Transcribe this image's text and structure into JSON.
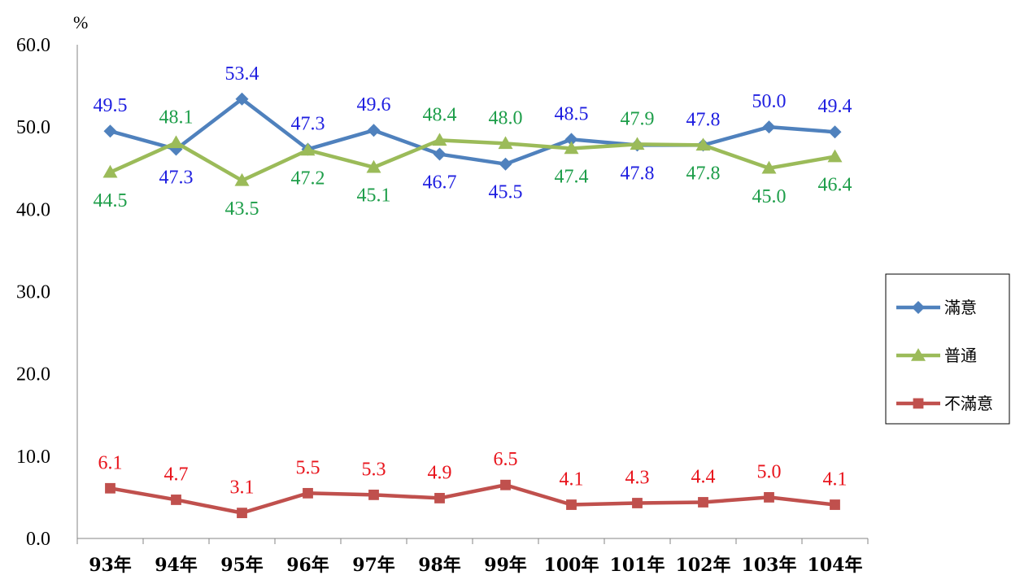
{
  "chart_data": {
    "type": "line",
    "unit_label": "%",
    "categories": [
      "93年",
      "94年",
      "95年",
      "96年",
      "97年",
      "98年",
      "99年",
      "100年",
      "101年",
      "102年",
      "103年",
      "104年"
    ],
    "ylim": [
      0,
      60
    ],
    "yticks": [
      "0.0",
      "10.0",
      "20.0",
      "30.0",
      "40.0",
      "50.0",
      "60.0"
    ],
    "grid": false,
    "legend_position": "right",
    "series": [
      {
        "name": "滿意",
        "color": "#4F81BD",
        "label_color": "#1F1FE0",
        "marker": "diamond",
        "values": [
          49.5,
          47.3,
          53.4,
          47.3,
          49.6,
          46.7,
          45.5,
          48.5,
          47.8,
          47.8,
          50.0,
          49.4
        ],
        "labels": [
          "49.5",
          "47.3",
          "53.4",
          "47.3",
          "49.6",
          "46.7",
          "45.5",
          "48.5",
          "47.8",
          "47.8",
          "50.0",
          "49.4"
        ]
      },
      {
        "name": "普通",
        "color": "#9BBB59",
        "label_color": "#1E9E4A",
        "marker": "triangle",
        "values": [
          44.5,
          48.1,
          43.5,
          47.2,
          45.1,
          48.4,
          48.0,
          47.4,
          47.9,
          47.8,
          45.0,
          46.4
        ],
        "labels": [
          "44.5",
          "48.1",
          "43.5",
          "47.2",
          "45.1",
          "48.4",
          "48.0",
          "47.4",
          "47.9",
          "47.8",
          "45.0",
          "46.4"
        ]
      },
      {
        "name": "不滿意",
        "color": "#C0504D",
        "label_color": "#E8141C",
        "marker": "square",
        "values": [
          6.1,
          4.7,
          3.1,
          5.5,
          5.3,
          4.9,
          6.5,
          4.1,
          4.3,
          4.4,
          5.0,
          4.1
        ],
        "labels": [
          "6.1",
          "4.7",
          "3.1",
          "5.5",
          "5.3",
          "4.9",
          "6.5",
          "4.1",
          "4.3",
          "4.4",
          "5.0",
          "4.1"
        ]
      }
    ]
  }
}
